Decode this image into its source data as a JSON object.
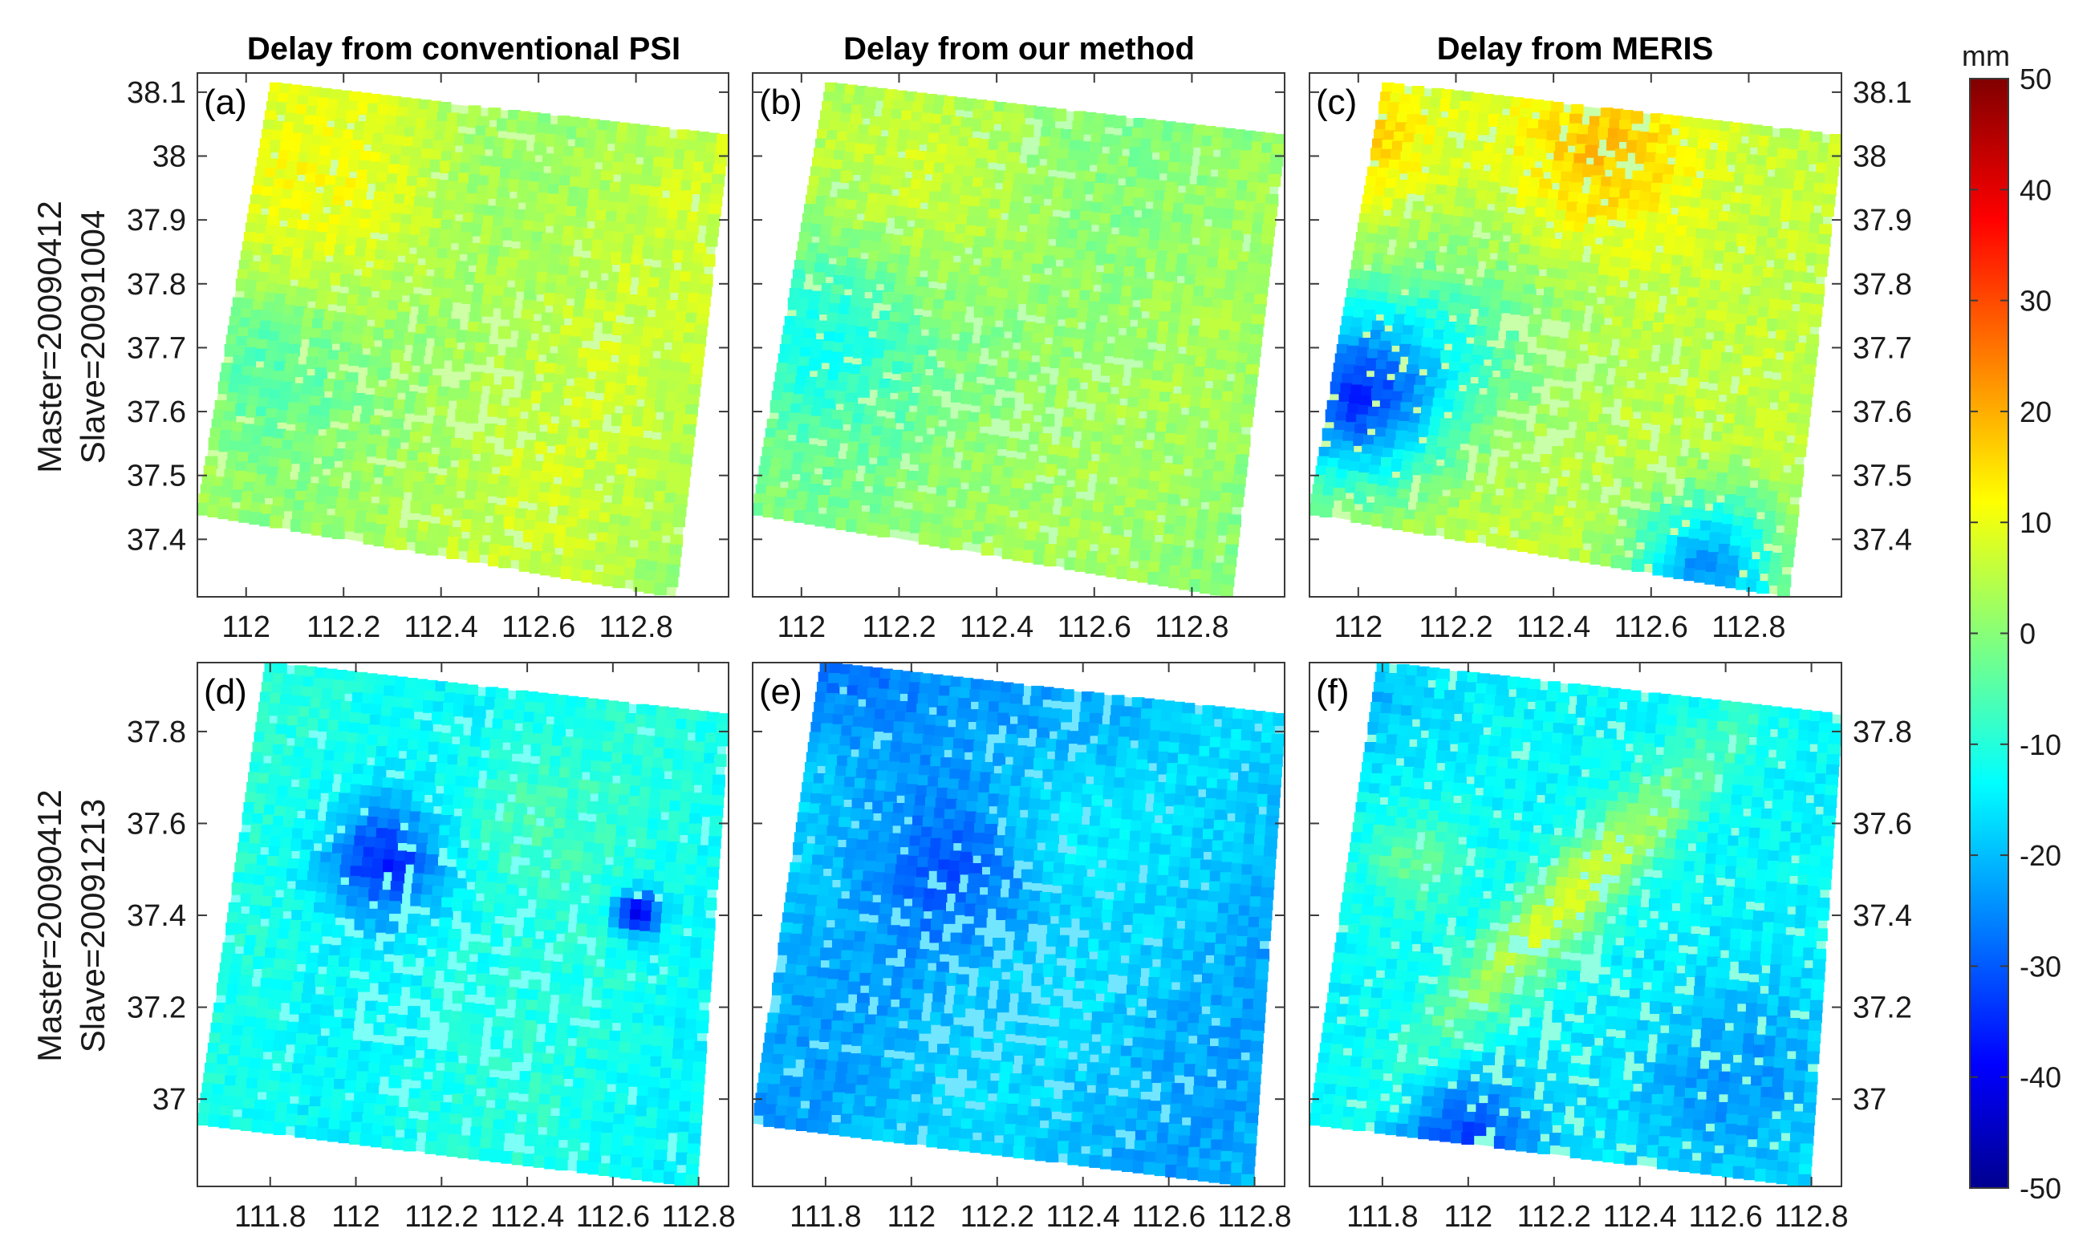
{
  "chart_data": {
    "type": "heatmap",
    "column_titles": [
      "Delay from conventional PSI",
      "Delay from our method",
      "Delay from MERIS"
    ],
    "row_labels": [
      {
        "line1": "Master=20090412",
        "line2": "Slave=20091004"
      },
      {
        "line1": "Master=20090412",
        "line2": "Slave=20091213"
      }
    ],
    "panels": [
      {
        "id": "a",
        "tag": "(a)",
        "row": 0,
        "col": 0,
        "source": "Delay from conventional PSI",
        "pair": "20090412-20091004",
        "base_delay_mm": 3,
        "dominant_range_mm": [
          -12,
          12
        ]
      },
      {
        "id": "b",
        "tag": "(b)",
        "row": 0,
        "col": 1,
        "source": "Delay from our method",
        "pair": "20090412-20091004",
        "base_delay_mm": 0,
        "dominant_range_mm": [
          -15,
          10
        ]
      },
      {
        "id": "c",
        "tag": "(c)",
        "row": 0,
        "col": 2,
        "source": "Delay from MERIS",
        "pair": "20090412-20091004",
        "base_delay_mm": 2,
        "dominant_range_mm": [
          -35,
          22
        ]
      },
      {
        "id": "d",
        "tag": "(d)",
        "row": 1,
        "col": 0,
        "source": "Delay from conventional PSI",
        "pair": "20090412-20091213",
        "base_delay_mm": -12,
        "dominant_range_mm": [
          -40,
          5
        ]
      },
      {
        "id": "e",
        "tag": "(e)",
        "row": 1,
        "col": 1,
        "source": "Delay from our method",
        "pair": "20090412-20091213",
        "base_delay_mm": -18,
        "dominant_range_mm": [
          -40,
          0
        ]
      },
      {
        "id": "f",
        "tag": "(f)",
        "row": 1,
        "col": 2,
        "source": "Delay from MERIS",
        "pair": "20090412-20091213",
        "base_delay_mm": -8,
        "dominant_range_mm": [
          -35,
          18
        ]
      }
    ],
    "rows": [
      {
        "xlim": [
          111.9,
          112.99
        ],
        "ylim": [
          37.31,
          38.13
        ],
        "xticks": [
          112,
          112.2,
          112.4,
          112.6,
          112.8
        ],
        "xtick_labels": [
          "112",
          "112.2",
          "112.4",
          "112.6",
          "112.8"
        ],
        "yticks": [
          37.4,
          37.5,
          37.6,
          37.7,
          37.8,
          37.9,
          38,
          38.1
        ],
        "ytick_labels": [
          "37.4",
          "37.5",
          "37.6",
          "37.7",
          "37.8",
          "37.9",
          "38",
          "38.1"
        ]
      },
      {
        "xlim": [
          111.63,
          112.87
        ],
        "ylim": [
          36.81,
          37.95
        ],
        "xticks": [
          111.8,
          112,
          112.2,
          112.4,
          112.6,
          112.8
        ],
        "xtick_labels": [
          "111.8",
          "112",
          "112.2",
          "112.4",
          "112.6",
          "112.8"
        ],
        "yticks": [
          37,
          37.2,
          37.4,
          37.6,
          37.8
        ],
        "ytick_labels": [
          "37",
          "37.2",
          "37.4",
          "37.6",
          "37.8"
        ]
      }
    ],
    "colorbar": {
      "unit": "mm",
      "range": [
        -50,
        50
      ],
      "ticks": [
        50,
        40,
        30,
        20,
        10,
        0,
        -10,
        -20,
        -30,
        -40,
        -50
      ],
      "tick_labels": [
        "50",
        "40",
        "30",
        "20",
        "10",
        "0",
        "-10",
        "-20",
        "-30",
        "-40",
        "-50"
      ],
      "colormap": "jet",
      "stops": [
        "#00008f",
        "#0000ff",
        "#00ffff",
        "#ffff00",
        "#ff0000",
        "#800000"
      ]
    }
  }
}
